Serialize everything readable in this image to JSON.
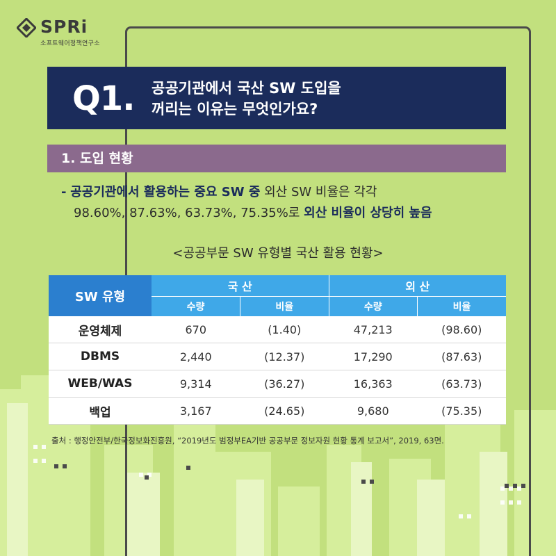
{
  "logo": {
    "word": "SPRi",
    "sub": "소프트웨어정책연구소"
  },
  "question": {
    "number": "Q1.",
    "line1": "공공기관에서 국산 SW 도입을",
    "line2": "꺼리는 이유는 무엇인가요?"
  },
  "section": {
    "title": "1. 도입 현황"
  },
  "bullet": {
    "dash": "-",
    "bold1": "공공기관에서 활용하는 중요 SW 중",
    "text1": " 외산 SW 비율은 각각",
    "text2": "98.60%, 87.63%, 63.73%, 75.35%로 ",
    "bold2": "외산 비율이 상당히 높음"
  },
  "table": {
    "title": "<공공부문 SW 유형별 국산 활용 현황>",
    "col_type": "SW 유형",
    "group_domestic": "국 산",
    "group_foreign": "외 산",
    "sub_qty": "수량",
    "sub_ratio": "비율",
    "rows": [
      {
        "type": "운영체제",
        "dom_qty": "670",
        "dom_ratio": "(1.40)",
        "for_qty": "47,213",
        "for_ratio": "(98.60)"
      },
      {
        "type": "DBMS",
        "dom_qty": "2,440",
        "dom_ratio": "(12.37)",
        "for_qty": "17,290",
        "for_ratio": "(87.63)"
      },
      {
        "type": "WEB/WAS",
        "dom_qty": "9,314",
        "dom_ratio": "(36.27)",
        "for_qty": "16,363",
        "for_ratio": "(63.73)"
      },
      {
        "type": "백업",
        "dom_qty": "3,167",
        "dom_ratio": "(24.65)",
        "for_qty": "9,680",
        "for_ratio": "(75.35)"
      }
    ]
  },
  "source": "출처 : 행정안전부/한국정보화진흥원, “2019년도 범정부EA기반 공공부문 정보자원 현황 통계 보고서”, 2019, 63면.",
  "colors": {
    "background": "#c2e07e",
    "navy": "#1b2c5b",
    "section": "#8b6a8d",
    "table_header_dark": "#2b7fcf",
    "table_header_light": "#3fa8e8"
  }
}
